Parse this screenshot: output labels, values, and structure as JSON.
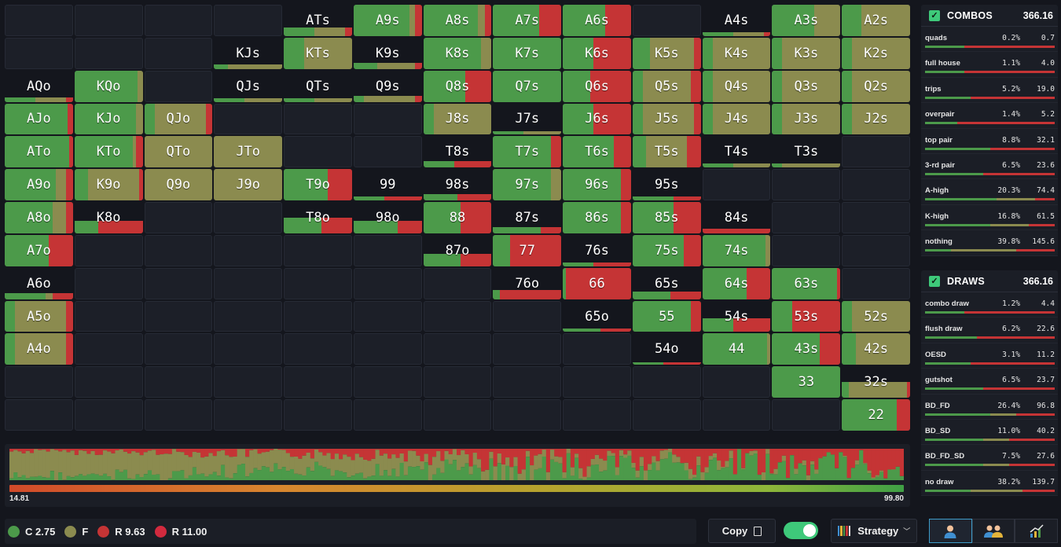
{
  "colors": {
    "call": "#4c9a4a",
    "fold": "#8b8b4f",
    "raise": "#c53435",
    "raise_big": "#d22a3e",
    "empty": "#1c1f28",
    "accent": "#3ec97a"
  },
  "grid": {
    "cells": [
      {
        "label": "ATs",
        "row": 0,
        "col": 4,
        "c": 0.45,
        "f": 0.45,
        "r": 0.1,
        "fill": 0.28
      },
      {
        "label": "A9s",
        "row": 0,
        "col": 5,
        "c": 0.82,
        "f": 0.08,
        "r": 0.1,
        "fill": 1
      },
      {
        "label": "A8s",
        "row": 0,
        "col": 6,
        "c": 0.8,
        "f": 0.1,
        "r": 0.1,
        "fill": 1
      },
      {
        "label": "A7s",
        "row": 0,
        "col": 7,
        "c": 0.68,
        "f": 0.0,
        "r": 0.32,
        "fill": 1
      },
      {
        "label": "A6s",
        "row": 0,
        "col": 8,
        "c": 0.62,
        "f": 0.0,
        "r": 0.38,
        "fill": 1
      },
      {
        "label": "A4s",
        "row": 0,
        "col": 10,
        "c": 0.45,
        "f": 0.45,
        "r": 0.1,
        "fill": 0.12
      },
      {
        "label": "A3s",
        "row": 0,
        "col": 11,
        "c": 0.62,
        "f": 0.38,
        "r": 0.0,
        "fill": 1
      },
      {
        "label": "A2s",
        "row": 0,
        "col": 12,
        "c": 0.28,
        "f": 0.72,
        "r": 0.0,
        "fill": 1
      },
      {
        "label": "KJs",
        "row": 1,
        "col": 3,
        "c": 0.2,
        "f": 0.8,
        "r": 0.0,
        "fill": 0.15
      },
      {
        "label": "KTs",
        "row": 1,
        "col": 4,
        "c": 0.3,
        "f": 0.7,
        "r": 0.0,
        "fill": 1
      },
      {
        "label": "K9s",
        "row": 1,
        "col": 5,
        "c": 0.35,
        "f": 0.55,
        "r": 0.1,
        "fill": 0.2
      },
      {
        "label": "K8s",
        "row": 1,
        "col": 6,
        "c": 0.85,
        "f": 0.15,
        "r": 0.0,
        "fill": 1
      },
      {
        "label": "K7s",
        "row": 1,
        "col": 7,
        "c": 1.0,
        "f": 0.0,
        "r": 0.0,
        "fill": 1
      },
      {
        "label": "K6s",
        "row": 1,
        "col": 8,
        "c": 0.45,
        "f": 0.0,
        "r": 0.55,
        "fill": 1
      },
      {
        "label": "K5s",
        "row": 1,
        "col": 9,
        "c": 0.25,
        "f": 0.65,
        "r": 0.1,
        "fill": 1
      },
      {
        "label": "K4s",
        "row": 1,
        "col": 10,
        "c": 0.15,
        "f": 0.85,
        "r": 0.0,
        "fill": 1
      },
      {
        "label": "K3s",
        "row": 1,
        "col": 11,
        "c": 0.15,
        "f": 0.85,
        "r": 0.0,
        "fill": 1
      },
      {
        "label": "K2s",
        "row": 1,
        "col": 12,
        "c": 0.15,
        "f": 0.85,
        "r": 0.0,
        "fill": 1
      },
      {
        "label": "AQo",
        "row": 2,
        "col": 0,
        "c": 0.45,
        "f": 0.45,
        "r": 0.1,
        "fill": 0.15
      },
      {
        "label": "KQo",
        "row": 2,
        "col": 1,
        "c": 0.92,
        "f": 0.08,
        "r": 0.0,
        "fill": 1
      },
      {
        "label": "QJs",
        "row": 2,
        "col": 3,
        "c": 0.45,
        "f": 0.55,
        "r": 0.0,
        "fill": 0.12
      },
      {
        "label": "QTs",
        "row": 2,
        "col": 4,
        "c": 0.45,
        "f": 0.55,
        "r": 0.0,
        "fill": 0.12
      },
      {
        "label": "Q9s",
        "row": 2,
        "col": 5,
        "c": 0.15,
        "f": 0.75,
        "r": 0.1,
        "fill": 0.2
      },
      {
        "label": "Q8s",
        "row": 2,
        "col": 6,
        "c": 0.62,
        "f": 0.0,
        "r": 0.38,
        "fill": 1
      },
      {
        "label": "Q7s",
        "row": 2,
        "col": 7,
        "c": 1.0,
        "f": 0.0,
        "r": 0.0,
        "fill": 1
      },
      {
        "label": "Q6s",
        "row": 2,
        "col": 8,
        "c": 0.4,
        "f": 0.0,
        "r": 0.6,
        "fill": 1
      },
      {
        "label": "Q5s",
        "row": 2,
        "col": 9,
        "c": 0.15,
        "f": 0.7,
        "r": 0.15,
        "fill": 1
      },
      {
        "label": "Q4s",
        "row": 2,
        "col": 10,
        "c": 0.15,
        "f": 0.85,
        "r": 0.0,
        "fill": 1
      },
      {
        "label": "Q3s",
        "row": 2,
        "col": 11,
        "c": 0.15,
        "f": 0.85,
        "r": 0.0,
        "fill": 1
      },
      {
        "label": "Q2s",
        "row": 2,
        "col": 12,
        "c": 0.15,
        "f": 0.85,
        "r": 0.0,
        "fill": 1
      },
      {
        "label": "AJo",
        "row": 3,
        "col": 0,
        "c": 0.92,
        "f": 0.0,
        "r": 0.08,
        "fill": 1
      },
      {
        "label": "KJo",
        "row": 3,
        "col": 1,
        "c": 0.9,
        "f": 0.1,
        "r": 0.0,
        "fill": 1
      },
      {
        "label": "QJo",
        "row": 3,
        "col": 2,
        "c": 0.15,
        "f": 0.75,
        "r": 0.1,
        "fill": 1
      },
      {
        "label": "J8s",
        "row": 3,
        "col": 6,
        "c": 0.15,
        "f": 0.85,
        "r": 0.0,
        "fill": 1
      },
      {
        "label": "J7s",
        "row": 3,
        "col": 7,
        "c": 0.45,
        "f": 0.55,
        "r": 0.0,
        "fill": 0.12
      },
      {
        "label": "J6s",
        "row": 3,
        "col": 8,
        "c": 0.45,
        "f": 0.0,
        "r": 0.55,
        "fill": 1
      },
      {
        "label": "J5s",
        "row": 3,
        "col": 9,
        "c": 0.15,
        "f": 0.75,
        "r": 0.1,
        "fill": 1
      },
      {
        "label": "J4s",
        "row": 3,
        "col": 10,
        "c": 0.15,
        "f": 0.85,
        "r": 0.0,
        "fill": 1
      },
      {
        "label": "J3s",
        "row": 3,
        "col": 11,
        "c": 0.15,
        "f": 0.85,
        "r": 0.0,
        "fill": 1
      },
      {
        "label": "J2s",
        "row": 3,
        "col": 12,
        "c": 0.15,
        "f": 0.85,
        "r": 0.0,
        "fill": 1
      },
      {
        "label": "ATo",
        "row": 4,
        "col": 0,
        "c": 0.95,
        "f": 0.0,
        "r": 0.05,
        "fill": 1
      },
      {
        "label": "KTo",
        "row": 4,
        "col": 1,
        "c": 0.85,
        "f": 0.05,
        "r": 0.1,
        "fill": 1
      },
      {
        "label": "QTo",
        "row": 4,
        "col": 2,
        "c": 0.0,
        "f": 1.0,
        "r": 0.0,
        "fill": 1
      },
      {
        "label": "JTo",
        "row": 4,
        "col": 3,
        "c": 0.0,
        "f": 1.0,
        "r": 0.0,
        "fill": 1
      },
      {
        "label": "T8s",
        "row": 4,
        "col": 6,
        "c": 0.45,
        "f": 0.0,
        "r": 0.55,
        "fill": 0.2
      },
      {
        "label": "T7s",
        "row": 4,
        "col": 7,
        "c": 0.85,
        "f": 0.0,
        "r": 0.15,
        "fill": 1
      },
      {
        "label": "T6s",
        "row": 4,
        "col": 8,
        "c": 0.75,
        "f": 0.0,
        "r": 0.25,
        "fill": 1
      },
      {
        "label": "T5s",
        "row": 4,
        "col": 9,
        "c": 0.2,
        "f": 0.6,
        "r": 0.2,
        "fill": 1
      },
      {
        "label": "T4s",
        "row": 4,
        "col": 10,
        "c": 0.45,
        "f": 0.55,
        "r": 0.0,
        "fill": 0.12
      },
      {
        "label": "T3s",
        "row": 4,
        "col": 11,
        "c": 0.15,
        "f": 0.85,
        "r": 0.0,
        "fill": 0.12
      },
      {
        "label": "A9o",
        "row": 5,
        "col": 0,
        "c": 0.75,
        "f": 0.15,
        "r": 0.1,
        "fill": 1
      },
      {
        "label": "K9o",
        "row": 5,
        "col": 1,
        "c": 0.2,
        "f": 0.75,
        "r": 0.05,
        "fill": 1
      },
      {
        "label": "Q9o",
        "row": 5,
        "col": 2,
        "c": 0.0,
        "f": 1.0,
        "r": 0.0,
        "fill": 1
      },
      {
        "label": "J9o",
        "row": 5,
        "col": 3,
        "c": 0.0,
        "f": 1.0,
        "r": 0.0,
        "fill": 1
      },
      {
        "label": "T9o",
        "row": 5,
        "col": 4,
        "c": 0.65,
        "f": 0.0,
        "r": 0.35,
        "fill": 1
      },
      {
        "label": "99",
        "row": 5,
        "col": 5,
        "c": 0.45,
        "f": 0.0,
        "r": 0.55,
        "fill": 0.12
      },
      {
        "label": "98s",
        "row": 5,
        "col": 6,
        "c": 0.5,
        "f": 0.0,
        "r": 0.5,
        "fill": 0.2
      },
      {
        "label": "97s",
        "row": 5,
        "col": 7,
        "c": 0.85,
        "f": 0.15,
        "r": 0.0,
        "fill": 1
      },
      {
        "label": "96s",
        "row": 5,
        "col": 8,
        "c": 0.85,
        "f": 0.0,
        "r": 0.15,
        "fill": 1
      },
      {
        "label": "95s",
        "row": 5,
        "col": 9,
        "c": 0.6,
        "f": 0.0,
        "r": 0.4,
        "fill": 0.12
      },
      {
        "label": "A8o",
        "row": 6,
        "col": 0,
        "c": 0.7,
        "f": 0.2,
        "r": 0.1,
        "fill": 1
      },
      {
        "label": "K8o",
        "row": 6,
        "col": 1,
        "c": 0.35,
        "f": 0.0,
        "r": 0.65,
        "fill": 0.4
      },
      {
        "label": "T8o",
        "row": 6,
        "col": 4,
        "c": 0.55,
        "f": 0.0,
        "r": 0.45,
        "fill": 0.5
      },
      {
        "label": "98o",
        "row": 6,
        "col": 5,
        "c": 0.65,
        "f": 0.0,
        "r": 0.35,
        "fill": 0.4
      },
      {
        "label": "88",
        "row": 6,
        "col": 6,
        "c": 0.55,
        "f": 0.0,
        "r": 0.45,
        "fill": 1
      },
      {
        "label": "87s",
        "row": 6,
        "col": 7,
        "c": 0.7,
        "f": 0.0,
        "r": 0.3,
        "fill": 0.2
      },
      {
        "label": "86s",
        "row": 6,
        "col": 8,
        "c": 0.85,
        "f": 0.0,
        "r": 0.15,
        "fill": 1
      },
      {
        "label": "85s",
        "row": 6,
        "col": 9,
        "c": 0.6,
        "f": 0.0,
        "r": 0.4,
        "fill": 1
      },
      {
        "label": "84s",
        "row": 6,
        "col": 10,
        "c": 0.0,
        "f": 0.0,
        "r": 1.0,
        "fill": 0.15
      },
      {
        "label": "A7o",
        "row": 7,
        "col": 0,
        "c": 0.65,
        "f": 0.0,
        "r": 0.35,
        "fill": 1
      },
      {
        "label": "87o",
        "row": 7,
        "col": 6,
        "c": 0.55,
        "f": 0.0,
        "r": 0.45,
        "fill": 0.4
      },
      {
        "label": "77",
        "row": 7,
        "col": 7,
        "c": 0.25,
        "f": 0.0,
        "r": 0.75,
        "fill": 1
      },
      {
        "label": "76s",
        "row": 7,
        "col": 8,
        "c": 0.45,
        "f": 0.0,
        "r": 0.55,
        "fill": 0.12
      },
      {
        "label": "75s",
        "row": 7,
        "col": 9,
        "c": 0.75,
        "f": 0.0,
        "r": 0.25,
        "fill": 1
      },
      {
        "label": "74s",
        "row": 7,
        "col": 10,
        "c": 0.92,
        "f": 0.08,
        "r": 0.0,
        "fill": 1
      },
      {
        "label": "A6o",
        "row": 8,
        "col": 0,
        "c": 0.6,
        "f": 0.1,
        "r": 0.3,
        "fill": 0.2
      },
      {
        "label": "76o",
        "row": 8,
        "col": 7,
        "c": 0.1,
        "f": 0.0,
        "r": 0.9,
        "fill": 0.3
      },
      {
        "label": "66",
        "row": 8,
        "col": 8,
        "c": 0.05,
        "f": 0.0,
        "r": 0.95,
        "fill": 1
      },
      {
        "label": "65s",
        "row": 8,
        "col": 9,
        "c": 0.55,
        "f": 0.0,
        "r": 0.45,
        "fill": 0.25
      },
      {
        "label": "64s",
        "row": 8,
        "col": 10,
        "c": 0.65,
        "f": 0.0,
        "r": 0.35,
        "fill": 1
      },
      {
        "label": "63s",
        "row": 8,
        "col": 11,
        "c": 0.95,
        "f": 0.0,
        "r": 0.05,
        "fill": 1
      },
      {
        "label": "A5o",
        "row": 9,
        "col": 0,
        "c": 0.15,
        "f": 0.75,
        "r": 0.1,
        "fill": 1
      },
      {
        "label": "65o",
        "row": 9,
        "col": 8,
        "c": 0.55,
        "f": 0.0,
        "r": 0.45,
        "fill": 0.12
      },
      {
        "label": "55",
        "row": 9,
        "col": 9,
        "c": 0.85,
        "f": 0.0,
        "r": 0.15,
        "fill": 1
      },
      {
        "label": "54s",
        "row": 9,
        "col": 10,
        "c": 0.45,
        "f": 0.0,
        "r": 0.55,
        "fill": 0.45
      },
      {
        "label": "53s",
        "row": 9,
        "col": 11,
        "c": 0.3,
        "f": 0.0,
        "r": 0.7,
        "fill": 1
      },
      {
        "label": "52s",
        "row": 9,
        "col": 12,
        "c": 0.15,
        "f": 0.85,
        "r": 0.0,
        "fill": 1
      },
      {
        "label": "A4o",
        "row": 10,
        "col": 0,
        "c": 0.15,
        "f": 0.75,
        "r": 0.1,
        "fill": 1
      },
      {
        "label": "54o",
        "row": 10,
        "col": 9,
        "c": 0.45,
        "f": 0.0,
        "r": 0.55,
        "fill": 0.08
      },
      {
        "label": "44",
        "row": 10,
        "col": 10,
        "c": 0.95,
        "f": 0.05,
        "r": 0.0,
        "fill": 1
      },
      {
        "label": "43s",
        "row": 10,
        "col": 11,
        "c": 0.7,
        "f": 0.0,
        "r": 0.3,
        "fill": 1
      },
      {
        "label": "42s",
        "row": 10,
        "col": 12,
        "c": 0.2,
        "f": 0.8,
        "r": 0.0,
        "fill": 1
      },
      {
        "label": "33",
        "row": 11,
        "col": 11,
        "c": 1.0,
        "f": 0.0,
        "r": 0.0,
        "fill": 1
      },
      {
        "label": "32s",
        "row": 11,
        "col": 12,
        "c": 0.1,
        "f": 0.85,
        "r": 0.05,
        "fill": 0.5
      },
      {
        "label": "22",
        "row": 12,
        "col": 12,
        "c": 0.8,
        "f": 0.0,
        "r": 0.2,
        "fill": 1
      }
    ]
  },
  "distribution": {
    "min_label": "14.81",
    "max_label": "99.80",
    "columns": 220
  },
  "combos": {
    "title": "COMBOS",
    "total": "366.16",
    "rows": [
      {
        "name": "quads",
        "pct": "0.2%",
        "count": "0.7",
        "c": 0.3,
        "f": 0.0,
        "r": 0.7
      },
      {
        "name": "full house",
        "pct": "1.1%",
        "count": "4.0",
        "c": 0.3,
        "f": 0.0,
        "r": 0.7
      },
      {
        "name": "trips",
        "pct": "5.2%",
        "count": "19.0",
        "c": 0.35,
        "f": 0.0,
        "r": 0.65
      },
      {
        "name": "overpair",
        "pct": "1.4%",
        "count": "5.2",
        "c": 0.25,
        "f": 0.0,
        "r": 0.75
      },
      {
        "name": "top pair",
        "pct": "8.8%",
        "count": "32.1",
        "c": 0.5,
        "f": 0.0,
        "r": 0.5
      },
      {
        "name": "3-rd pair",
        "pct": "6.5%",
        "count": "23.6",
        "c": 0.45,
        "f": 0.0,
        "r": 0.55
      },
      {
        "name": "A-high",
        "pct": "20.3%",
        "count": "74.4",
        "c": 0.55,
        "f": 0.3,
        "r": 0.15
      },
      {
        "name": "K-high",
        "pct": "16.8%",
        "count": "61.5",
        "c": 0.5,
        "f": 0.3,
        "r": 0.2
      },
      {
        "name": "nothing",
        "pct": "39.8%",
        "count": "145.6",
        "c": 0.2,
        "f": 0.5,
        "r": 0.3
      }
    ]
  },
  "draws": {
    "title": "DRAWS",
    "total": "366.16",
    "rows": [
      {
        "name": "combo draw",
        "pct": "1.2%",
        "count": "4.4",
        "c": 0.3,
        "f": 0.0,
        "r": 0.7
      },
      {
        "name": "flush draw",
        "pct": "6.2%",
        "count": "22.6",
        "c": 0.4,
        "f": 0.0,
        "r": 0.6
      },
      {
        "name": "OESD",
        "pct": "3.1%",
        "count": "11.2",
        "c": 0.35,
        "f": 0.0,
        "r": 0.65
      },
      {
        "name": "gutshot",
        "pct": "6.5%",
        "count": "23.7",
        "c": 0.45,
        "f": 0.0,
        "r": 0.55
      },
      {
        "name": "BD_FD",
        "pct": "26.4%",
        "count": "96.8",
        "c": 0.5,
        "f": 0.2,
        "r": 0.3
      },
      {
        "name": "BD_SD",
        "pct": "11.0%",
        "count": "40.2",
        "c": 0.45,
        "f": 0.2,
        "r": 0.35
      },
      {
        "name": "BD_FD_SD",
        "pct": "7.5%",
        "count": "27.6",
        "c": 0.45,
        "f": 0.2,
        "r": 0.35
      },
      {
        "name": "no draw",
        "pct": "38.2%",
        "count": "139.7",
        "c": 0.35,
        "f": 0.4,
        "r": 0.25
      }
    ]
  },
  "legend": [
    {
      "label": "C 2.75",
      "color": "#4c9a4a"
    },
    {
      "label": "F",
      "color": "#8b8b4f"
    },
    {
      "label": "R 9.63",
      "color": "#c53435"
    },
    {
      "label": "R 11.00",
      "color": "#d22a3e"
    }
  ],
  "toolbar": {
    "copy_label": "Copy",
    "copy_icon": "copy-icon",
    "toggle_on": true,
    "strategy_label": "Strategy",
    "view_icons": [
      "single-player-icon",
      "group-icon",
      "chart-icon"
    ]
  }
}
